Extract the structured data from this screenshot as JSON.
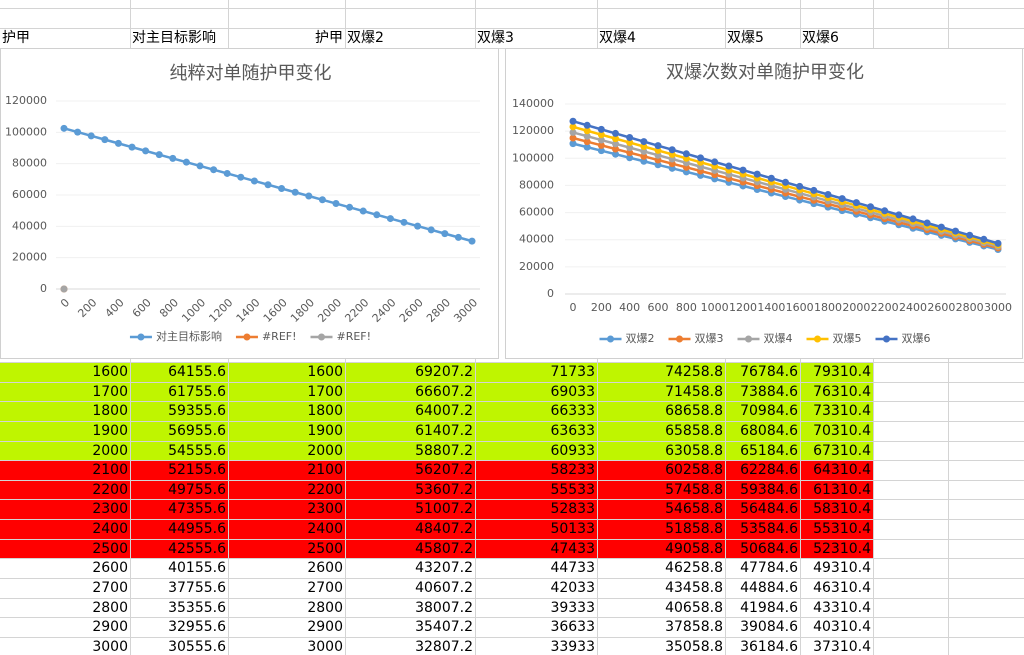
{
  "chart_data": [
    {
      "type": "line",
      "title": "纯粹对单随护甲变化",
      "x": [
        0,
        100,
        200,
        300,
        400,
        500,
        600,
        700,
        800,
        900,
        1000,
        1100,
        1200,
        1300,
        1400,
        1500,
        1600,
        1700,
        1800,
        1900,
        2000,
        2100,
        2200,
        2300,
        2400,
        2500,
        2600,
        2700,
        2800,
        2900,
        3000
      ],
      "xlim": [
        0,
        3000
      ],
      "xticks": [
        0,
        200,
        400,
        600,
        800,
        1000,
        1200,
        1400,
        1600,
        1800,
        2000,
        2200,
        2400,
        2600,
        2800,
        3000
      ],
      "ylim": [
        0,
        120000
      ],
      "yticks": [
        0,
        20000,
        40000,
        60000,
        80000,
        100000,
        120000
      ],
      "grid": true,
      "legend": "bottom",
      "series": [
        {
          "name": "对主目标影响",
          "color": "#5b9bd5",
          "values": [
            102555.6,
            100155.6,
            97755.6,
            95355.6,
            92955.6,
            90555.6,
            88155.6,
            85755.6,
            83355.6,
            80955.6,
            78555.6,
            76155.6,
            73755.6,
            71355.6,
            68955.6,
            66555.6,
            64155.6,
            61755.6,
            59355.6,
            56955.6,
            54555.6,
            52155.6,
            49755.6,
            47355.6,
            44955.6,
            42555.6,
            40155.6,
            37755.6,
            35355.6,
            32955.6,
            30555.6
          ]
        },
        {
          "name": "#REF!",
          "color": "#ed7d31",
          "values": [
            0,
            null,
            null,
            null,
            null,
            null,
            null,
            null,
            null,
            null,
            null,
            null,
            null,
            null,
            null,
            null,
            null,
            null,
            null,
            null,
            null,
            null,
            null,
            null,
            null,
            null,
            null,
            null,
            null,
            null,
            null
          ]
        },
        {
          "name": "#REF!",
          "color": "#a5a5a5",
          "values": [
            0,
            null,
            null,
            null,
            null,
            null,
            null,
            null,
            null,
            null,
            null,
            null,
            null,
            null,
            null,
            null,
            null,
            null,
            null,
            null,
            null,
            null,
            null,
            null,
            null,
            null,
            null,
            null,
            null,
            null,
            null
          ]
        }
      ]
    },
    {
      "type": "line",
      "title": "双爆次数对单随护甲变化",
      "x": [
        0,
        100,
        200,
        300,
        400,
        500,
        600,
        700,
        800,
        900,
        1000,
        1100,
        1200,
        1300,
        1400,
        1500,
        1600,
        1700,
        1800,
        1900,
        2000,
        2100,
        2200,
        2300,
        2400,
        2500,
        2600,
        2700,
        2800,
        2900,
        3000
      ],
      "xlim": [
        0,
        3000
      ],
      "xticks": [
        0,
        200,
        400,
        600,
        800,
        1000,
        1200,
        1400,
        1600,
        1800,
        2000,
        2200,
        2400,
        2600,
        2800,
        3000
      ],
      "ylim": [
        0,
        140000
      ],
      "yticks": [
        0,
        20000,
        40000,
        60000,
        80000,
        100000,
        120000,
        140000
      ],
      "grid": true,
      "legend": "bottom",
      "series": [
        {
          "name": "双爆2",
          "color": "#5b9bd5",
          "values": [
            110807.2,
            108207.2,
            105607.2,
            103007.2,
            100407.2,
            97807.2,
            95207.2,
            92607.2,
            90007.2,
            87407.2,
            84807.2,
            82207.2,
            79607.2,
            77007.2,
            74407.2,
            71807.2,
            69207.2,
            66607.2,
            64007.2,
            61407.2,
            58807.2,
            56207.2,
            53607.2,
            51007.2,
            48407.2,
            45807.2,
            43207.2,
            40607.2,
            38007.2,
            35407.2,
            32807.2
          ]
        },
        {
          "name": "双爆3",
          "color": "#ed7d31",
          "values": [
            114933,
            112233,
            109533,
            106833,
            104133,
            101433,
            98733,
            96033,
            93333,
            90633,
            87933,
            85233,
            82533,
            79833,
            77133,
            74433,
            71733,
            69033,
            66333,
            63633,
            60933,
            58233,
            55533,
            52833,
            50133,
            47433,
            44733,
            42033,
            39333,
            36633,
            33933
          ]
        },
        {
          "name": "双爆4",
          "color": "#a5a5a5",
          "values": [
            119058.8,
            116258.8,
            113458.8,
            110658.8,
            107858.8,
            105058.8,
            102258.8,
            99458.8,
            96658.8,
            93858.8,
            91058.8,
            88258.8,
            85458.8,
            82658.8,
            79858.8,
            77058.8,
            74258.8,
            71458.8,
            68658.8,
            65858.8,
            63058.8,
            60258.8,
            57458.8,
            54658.8,
            51858.8,
            49058.8,
            46258.8,
            43458.8,
            40658.8,
            37858.8,
            35058.8
          ]
        },
        {
          "name": "双爆5",
          "color": "#ffc000",
          "values": [
            123184.6,
            120284.6,
            117384.6,
            114484.6,
            111584.6,
            108684.6,
            105784.6,
            102884.6,
            99984.6,
            97084.6,
            94184.6,
            91284.6,
            88384.6,
            85484.6,
            82584.6,
            79684.6,
            76784.6,
            73884.6,
            70984.6,
            68084.6,
            65184.6,
            62284.6,
            59384.6,
            56484.6,
            53584.6,
            50684.6,
            47784.6,
            44884.6,
            41984.6,
            39084.6,
            36184.6
          ]
        },
        {
          "name": "双爆6",
          "color": "#4472c4",
          "values": [
            127310.4,
            124310.4,
            121310.4,
            118310.4,
            115310.4,
            112310.4,
            109310.4,
            106310.4,
            103310.4,
            100310.4,
            97310.4,
            94310.4,
            91310.4,
            88310.4,
            85310.4,
            82310.4,
            79310.4,
            76310.4,
            73310.4,
            70310.4,
            67310.4,
            64310.4,
            61310.4,
            58310.4,
            55310.4,
            52310.4,
            49310.4,
            46310.4,
            43310.4,
            40310.4,
            37310.4
          ]
        }
      ]
    }
  ],
  "table": {
    "header": [
      "护甲",
      "对主目标影响",
      "护甲",
      "双爆2",
      "双爆3",
      "双爆4",
      "双爆5",
      "双爆6"
    ],
    "rows": [
      [
        1600,
        64155.6,
        1600,
        69207.2,
        71733,
        74258.8,
        76784.6,
        79310.4
      ],
      [
        1700,
        61755.6,
        1700,
        66607.2,
        69033,
        71458.8,
        73884.6,
        76310.4
      ],
      [
        1800,
        59355.6,
        1800,
        64007.2,
        66333,
        68658.8,
        70984.6,
        73310.4
      ],
      [
        1900,
        56955.6,
        1900,
        61407.2,
        63633,
        65858.8,
        68084.6,
        70310.4
      ],
      [
        2000,
        54555.6,
        2000,
        58807.2,
        60933,
        63058.8,
        65184.6,
        67310.4
      ],
      [
        2100,
        52155.6,
        2100,
        56207.2,
        58233,
        60258.8,
        62284.6,
        64310.4
      ],
      [
        2200,
        49755.6,
        2200,
        53607.2,
        55533,
        57458.8,
        59384.6,
        61310.4
      ],
      [
        2300,
        47355.6,
        2300,
        51007.2,
        52833,
        54658.8,
        56484.6,
        58310.4
      ],
      [
        2400,
        44955.6,
        2400,
        48407.2,
        50133,
        51858.8,
        53584.6,
        55310.4
      ],
      [
        2500,
        42555.6,
        2500,
        45807.2,
        47433,
        49058.8,
        50684.6,
        52310.4
      ],
      [
        2600,
        40155.6,
        2600,
        43207.2,
        44733,
        46258.8,
        47784.6,
        49310.4
      ],
      [
        2700,
        37755.6,
        2700,
        40607.2,
        42033,
        43458.8,
        44884.6,
        46310.4
      ],
      [
        2800,
        35355.6,
        2800,
        38007.2,
        39333,
        40658.8,
        41984.6,
        43310.4
      ],
      [
        2900,
        32955.6,
        2900,
        35407.2,
        36633,
        37858.8,
        39084.6,
        40310.4
      ],
      [
        3000,
        30555.6,
        3000,
        32807.2,
        33933,
        35058.8,
        36184.6,
        37310.4
      ]
    ]
  }
}
